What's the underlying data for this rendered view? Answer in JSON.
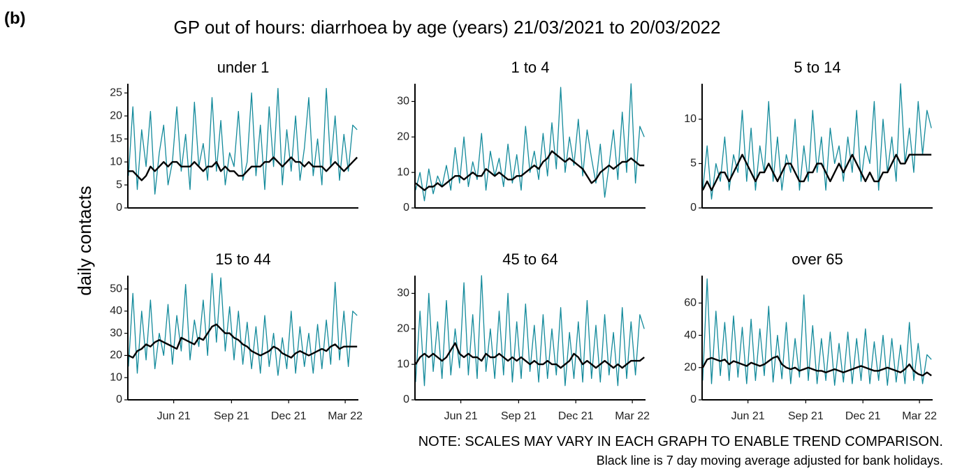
{
  "panel_label": "(b)",
  "title": "GP out of hours: diarrhoea by age (years) 21/03/2021 to 20/03/2022",
  "y_label": "daily contacts",
  "notes": [
    "NOTE: SCALES MAY VARY IN EACH GRAPH TO ENABLE TREND COMPARISON.",
    "Black line is 7 day moving average adjusted for bank holidays."
  ],
  "chart_data": [
    {
      "type": "line",
      "title": "under 1",
      "x": [
        0,
        7,
        14,
        21,
        28,
        35,
        42,
        49,
        56,
        63,
        70,
        77,
        84,
        91,
        98,
        105,
        112,
        119,
        126,
        133,
        140,
        147,
        154,
        161,
        168,
        175,
        182,
        189,
        196,
        203,
        210,
        217,
        224,
        231,
        238,
        245,
        252,
        259,
        266,
        273,
        280,
        287,
        294,
        301,
        308,
        315,
        322,
        329,
        336,
        343,
        350,
        357,
        364
      ],
      "series": [
        {
          "color": "#138a9b",
          "values": [
            7,
            22,
            4,
            17,
            9,
            21,
            3,
            12,
            18,
            5,
            10,
            22,
            8,
            16,
            4,
            23,
            9,
            14,
            6,
            24,
            8,
            19,
            5,
            12,
            9,
            21,
            6,
            10,
            25,
            7,
            18,
            4,
            22,
            9,
            26,
            5,
            17,
            8,
            20,
            6,
            13,
            24,
            7,
            15,
            5,
            26,
            9,
            20,
            6,
            16,
            8,
            18,
            17
          ]
        },
        {
          "color": "#000000",
          "values": [
            8,
            8,
            7,
            6,
            7,
            9,
            8,
            9,
            10,
            9,
            10,
            10,
            9,
            9,
            9,
            10,
            9,
            8,
            9,
            9,
            10,
            8,
            9,
            8,
            8,
            7,
            7,
            8,
            9,
            9,
            9,
            10,
            10,
            11,
            10,
            9,
            10,
            11,
            10,
            10,
            9,
            10,
            9,
            9,
            9,
            8,
            9,
            10,
            9,
            8,
            9,
            10,
            11
          ]
        }
      ],
      "xlim": [
        -1,
        366
      ],
      "ylim": [
        0,
        27
      ],
      "yticks": [
        0,
        5,
        10,
        15,
        20,
        25
      ]
    },
    {
      "type": "line",
      "title": "1 to 4",
      "x": [
        0,
        7,
        14,
        21,
        28,
        35,
        42,
        49,
        56,
        63,
        70,
        77,
        84,
        91,
        98,
        105,
        112,
        119,
        126,
        133,
        140,
        147,
        154,
        161,
        168,
        175,
        182,
        189,
        196,
        203,
        210,
        217,
        224,
        231,
        238,
        245,
        252,
        259,
        266,
        273,
        280,
        287,
        294,
        301,
        308,
        315,
        322,
        329,
        336,
        343,
        350,
        357,
        364
      ],
      "series": [
        {
          "color": "#138a9b",
          "values": [
            5,
            10,
            2,
            11,
            4,
            9,
            6,
            12,
            5,
            17,
            7,
            20,
            6,
            13,
            8,
            21,
            5,
            16,
            9,
            14,
            6,
            18,
            7,
            15,
            5,
            23,
            10,
            16,
            8,
            21,
            9,
            24,
            11,
            34,
            10,
            20,
            12,
            25,
            9,
            22,
            14,
            7,
            18,
            3,
            12,
            22,
            8,
            27,
            10,
            35,
            7,
            23,
            20
          ]
        },
        {
          "color": "#000000",
          "values": [
            7,
            6,
            5,
            6,
            6,
            7,
            6,
            7,
            8,
            9,
            9,
            8,
            9,
            10,
            9,
            9,
            11,
            10,
            9,
            10,
            9,
            8,
            8,
            9,
            9,
            10,
            11,
            12,
            11,
            13,
            14,
            16,
            15,
            14,
            13,
            14,
            13,
            12,
            11,
            9,
            7,
            8,
            10,
            11,
            12,
            11,
            12,
            13,
            13,
            14,
            13,
            12,
            12
          ]
        }
      ],
      "xlim": [
        -1,
        366
      ],
      "ylim": [
        0,
        35
      ],
      "yticks": [
        0,
        10,
        20,
        30
      ]
    },
    {
      "type": "line",
      "title": "5 to 14",
      "x": [
        0,
        7,
        14,
        21,
        28,
        35,
        42,
        49,
        56,
        63,
        70,
        77,
        84,
        91,
        98,
        105,
        112,
        119,
        126,
        133,
        140,
        147,
        154,
        161,
        168,
        175,
        182,
        189,
        196,
        203,
        210,
        217,
        224,
        231,
        238,
        245,
        252,
        259,
        266,
        273,
        280,
        287,
        294,
        301,
        308,
        315,
        322,
        329,
        336,
        343,
        350,
        357,
        364
      ],
      "series": [
        {
          "color": "#138a9b",
          "values": [
            2,
            7,
            1,
            5,
            3,
            8,
            2,
            6,
            4,
            11,
            3,
            9,
            2,
            7,
            4,
            12,
            3,
            8,
            2,
            6,
            4,
            10,
            2,
            7,
            3,
            11,
            4,
            8,
            2,
            9,
            5,
            7,
            3,
            8,
            4,
            11,
            3,
            7,
            5,
            12,
            2,
            10,
            4,
            8,
            3,
            14,
            5,
            9,
            4,
            12,
            6,
            11,
            9
          ]
        },
        {
          "color": "#000000",
          "values": [
            2,
            3,
            2,
            3,
            4,
            4,
            3,
            4,
            5,
            6,
            5,
            4,
            3,
            4,
            4,
            5,
            4,
            3,
            4,
            5,
            5,
            4,
            3,
            3,
            4,
            4,
            5,
            5,
            4,
            3,
            4,
            5,
            4,
            5,
            6,
            5,
            4,
            3,
            4,
            3,
            3,
            4,
            4,
            5,
            6,
            5,
            5,
            6,
            6,
            6,
            6,
            6,
            6
          ]
        }
      ],
      "xlim": [
        -1,
        366
      ],
      "ylim": [
        0,
        14
      ],
      "yticks": [
        0,
        5,
        10
      ]
    },
    {
      "type": "line",
      "title": "15 to 44",
      "x": [
        0,
        7,
        14,
        21,
        28,
        35,
        42,
        49,
        56,
        63,
        70,
        77,
        84,
        91,
        98,
        105,
        112,
        119,
        126,
        133,
        140,
        147,
        154,
        161,
        168,
        175,
        182,
        189,
        196,
        203,
        210,
        217,
        224,
        231,
        238,
        245,
        252,
        259,
        266,
        273,
        280,
        287,
        294,
        301,
        308,
        315,
        322,
        329,
        336,
        343,
        350,
        357,
        364
      ],
      "series": [
        {
          "color": "#138a9b",
          "values": [
            15,
            48,
            12,
            40,
            18,
            45,
            14,
            30,
            20,
            43,
            16,
            38,
            22,
            52,
            18,
            36,
            24,
            45,
            20,
            57,
            26,
            55,
            22,
            42,
            18,
            40,
            16,
            35,
            14,
            33,
            12,
            38,
            15,
            30,
            11,
            28,
            14,
            40,
            12,
            33,
            15,
            30,
            12,
            34,
            14,
            36,
            16,
            53,
            18,
            40,
            15,
            40,
            38
          ]
        },
        {
          "color": "#000000",
          "values": [
            20,
            19,
            22,
            23,
            25,
            24,
            26,
            27,
            26,
            25,
            24,
            23,
            28,
            27,
            26,
            25,
            28,
            27,
            30,
            33,
            34,
            32,
            30,
            30,
            28,
            27,
            25,
            24,
            22,
            21,
            20,
            21,
            22,
            24,
            23,
            21,
            20,
            19,
            21,
            22,
            21,
            20,
            21,
            22,
            23,
            22,
            24,
            25,
            23,
            24,
            24,
            24,
            24
          ]
        }
      ],
      "xlim": [
        -1,
        366
      ],
      "ylim": [
        0,
        56
      ],
      "yticks": [
        0,
        10,
        20,
        30,
        40,
        50
      ],
      "xticks": [
        {
          "value": 72,
          "label": "Jun 21"
        },
        {
          "value": 164,
          "label": "Sep 21"
        },
        {
          "value": 255,
          "label": "Dec 21"
        },
        {
          "value": 345,
          "label": "Mar 22"
        }
      ]
    },
    {
      "type": "line",
      "title": "45 to 64",
      "x": [
        0,
        7,
        14,
        21,
        28,
        35,
        42,
        49,
        56,
        63,
        70,
        77,
        84,
        91,
        98,
        105,
        112,
        119,
        126,
        133,
        140,
        147,
        154,
        161,
        168,
        175,
        182,
        189,
        196,
        203,
        210,
        217,
        224,
        231,
        238,
        245,
        252,
        259,
        266,
        273,
        280,
        287,
        294,
        301,
        308,
        315,
        322,
        329,
        336,
        343,
        350,
        357,
        364
      ],
      "series": [
        {
          "color": "#138a9b",
          "values": [
            5,
            25,
            4,
            30,
            8,
            22,
            6,
            28,
            7,
            20,
            9,
            33,
            7,
            24,
            6,
            35,
            8,
            20,
            6,
            25,
            7,
            30,
            5,
            22,
            6,
            27,
            8,
            21,
            5,
            24,
            6,
            20,
            7,
            26,
            4,
            19,
            6,
            22,
            5,
            28,
            6,
            21,
            5,
            24,
            7,
            19,
            4,
            26,
            6,
            22,
            7,
            24,
            20
          ]
        },
        {
          "color": "#000000",
          "values": [
            10,
            12,
            13,
            12,
            13,
            12,
            11,
            12,
            14,
            16,
            13,
            12,
            13,
            12,
            12,
            11,
            13,
            12,
            12,
            13,
            12,
            11,
            12,
            11,
            12,
            11,
            10,
            11,
            10,
            10,
            11,
            10,
            10,
            9,
            10,
            11,
            13,
            12,
            10,
            11,
            10,
            9,
            10,
            11,
            10,
            9,
            10,
            9,
            10,
            11,
            11,
            11,
            12
          ]
        }
      ],
      "xlim": [
        -1,
        366
      ],
      "ylim": [
        0,
        35
      ],
      "yticks": [
        0,
        10,
        20,
        30
      ],
      "xticks": [
        {
          "value": 72,
          "label": "Jun 21"
        },
        {
          "value": 164,
          "label": "Sep 21"
        },
        {
          "value": 255,
          "label": "Dec 21"
        },
        {
          "value": 345,
          "label": "Mar 22"
        }
      ]
    },
    {
      "type": "line",
      "title": "over 65",
      "x": [
        0,
        7,
        14,
        21,
        28,
        35,
        42,
        49,
        56,
        63,
        70,
        77,
        84,
        91,
        98,
        105,
        112,
        119,
        126,
        133,
        140,
        147,
        154,
        161,
        168,
        175,
        182,
        189,
        196,
        203,
        210,
        217,
        224,
        231,
        238,
        245,
        252,
        259,
        266,
        273,
        280,
        287,
        294,
        301,
        308,
        315,
        322,
        329,
        336,
        343,
        350,
        357,
        364
      ],
      "series": [
        {
          "color": "#138a9b",
          "values": [
            12,
            75,
            10,
            55,
            15,
            48,
            12,
            52,
            14,
            45,
            10,
            50,
            12,
            44,
            15,
            58,
            11,
            40,
            13,
            48,
            10,
            38,
            14,
            65,
            12,
            46,
            10,
            38,
            12,
            42,
            9,
            35,
            11,
            42,
            10,
            38,
            12,
            44,
            10,
            36,
            12,
            40,
            9,
            38,
            11,
            34,
            10,
            48,
            12,
            35,
            10,
            28,
            25
          ]
        },
        {
          "color": "#000000",
          "values": [
            20,
            25,
            26,
            25,
            24,
            25,
            22,
            24,
            23,
            22,
            21,
            23,
            22,
            21,
            22,
            24,
            26,
            27,
            22,
            20,
            19,
            20,
            18,
            19,
            20,
            19,
            18,
            18,
            17,
            18,
            19,
            18,
            17,
            18,
            19,
            20,
            21,
            20,
            19,
            18,
            18,
            19,
            20,
            19,
            18,
            17,
            19,
            22,
            18,
            16,
            15,
            17,
            15
          ]
        }
      ],
      "xlim": [
        -1,
        366
      ],
      "ylim": [
        0,
        77
      ],
      "yticks": [
        0,
        20,
        40,
        60
      ],
      "xticks": [
        {
          "value": 72,
          "label": "Jun 21"
        },
        {
          "value": 164,
          "label": "Sep 21"
        },
        {
          "value": 255,
          "label": "Dec 21"
        },
        {
          "value": 345,
          "label": "Mar 22"
        }
      ]
    }
  ]
}
